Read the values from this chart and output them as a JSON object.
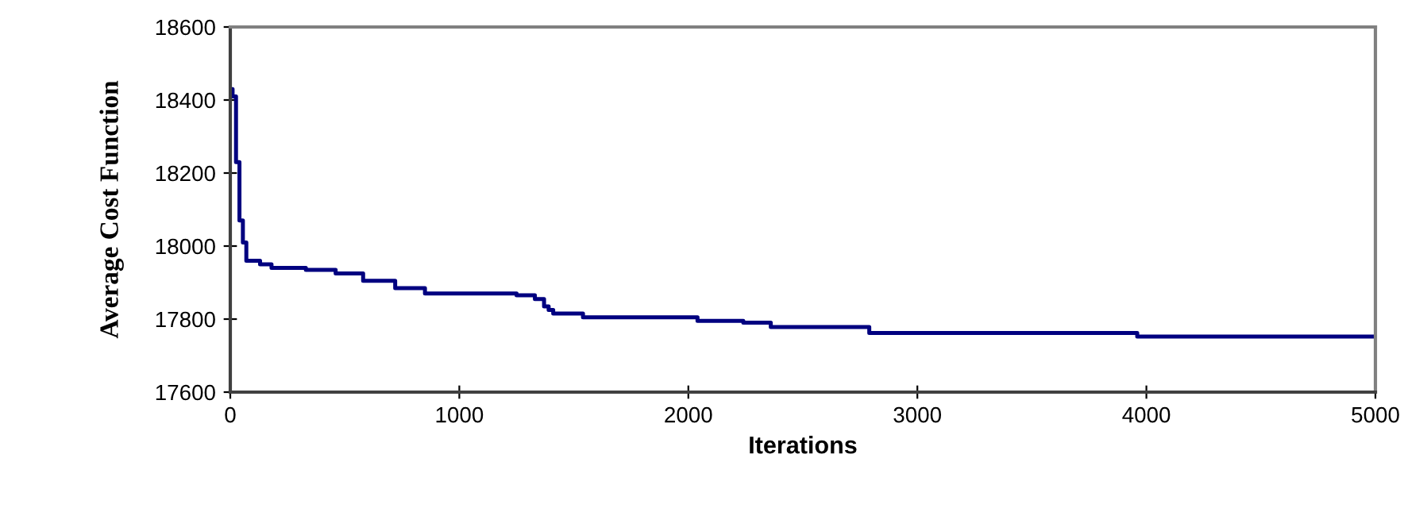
{
  "chart_data": {
    "type": "step",
    "xlabel": "Iterations",
    "ylabel": "Average Cost Function",
    "x": [
      0,
      10,
      25,
      40,
      55,
      70,
      130,
      180,
      330,
      460,
      580,
      720,
      850,
      1250,
      1330,
      1370,
      1390,
      1410,
      1540,
      2040,
      2240,
      2360,
      2790,
      3960,
      5000
    ],
    "series": [
      {
        "color": "#000080",
        "values": [
          18430,
          18410,
          18230,
          18070,
          18010,
          17960,
          17950,
          17940,
          17935,
          17925,
          17905,
          17885,
          17870,
          17865,
          17855,
          17835,
          17825,
          17815,
          17805,
          17795,
          17790,
          17778,
          17762,
          17752,
          17752
        ]
      }
    ],
    "xlim": [
      0,
      5000
    ],
    "xticks": [
      0,
      1000,
      2000,
      3000,
      4000,
      5000
    ],
    "ylim": [
      17600,
      18600
    ],
    "yticks": [
      17600,
      17800,
      18000,
      18200,
      18400,
      18600
    ],
    "grid": false,
    "legend": false
  }
}
